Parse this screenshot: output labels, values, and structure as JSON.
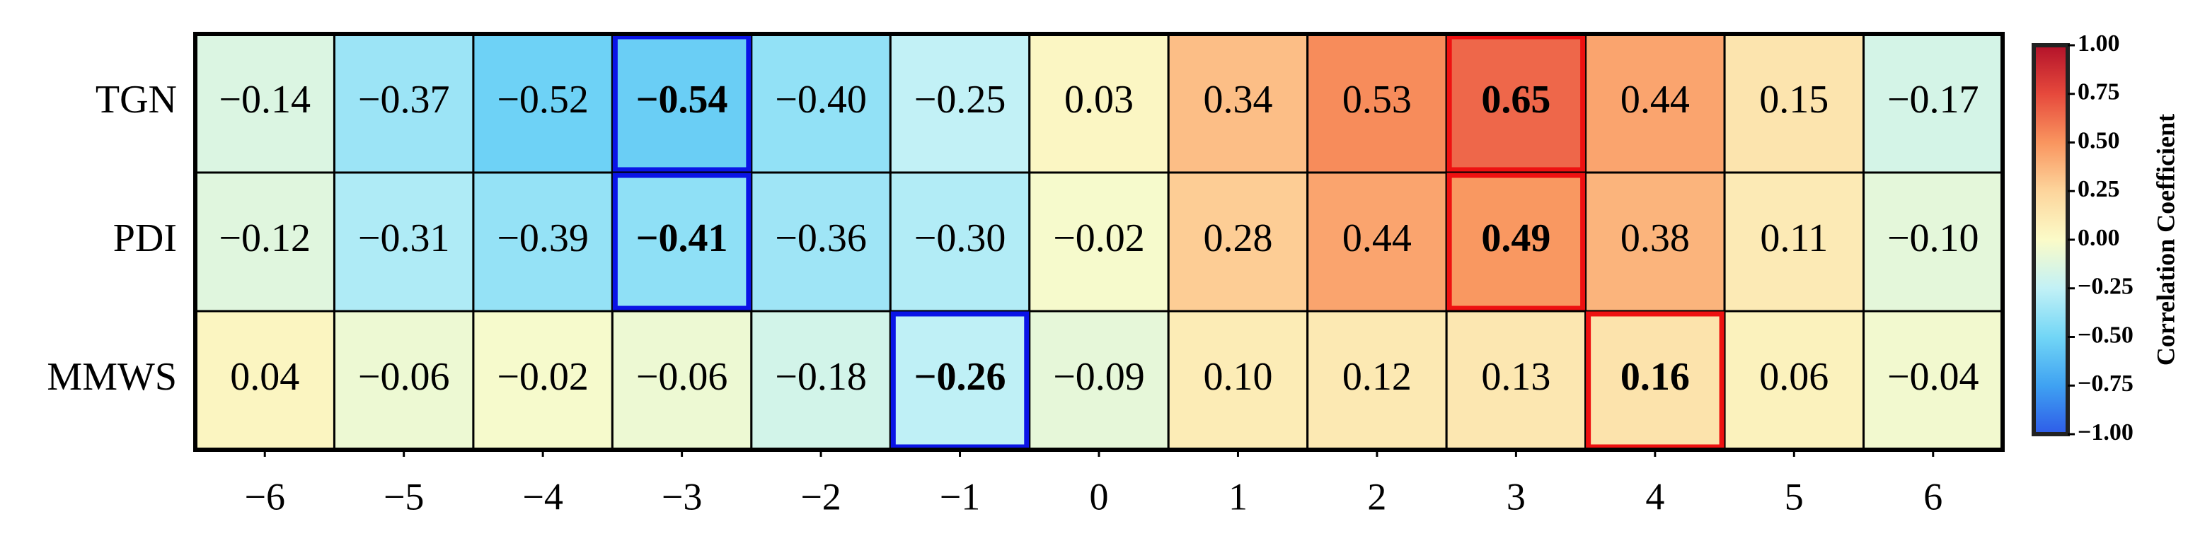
{
  "chart_data": {
    "type": "heatmap",
    "rows": [
      "TGN",
      "PDI",
      "MMWS"
    ],
    "xlim": [
      -6.5,
      6.5
    ],
    "xticks": [
      {
        "value": -6,
        "label": "−6"
      },
      {
        "value": -5,
        "label": "−5"
      },
      {
        "value": -4,
        "label": "−4"
      },
      {
        "value": -3,
        "label": "−3"
      },
      {
        "value": -2,
        "label": "−2"
      },
      {
        "value": -1,
        "label": "−1"
      },
      0,
      1,
      2,
      3,
      4,
      5,
      6
    ],
    "values": [
      [
        -0.14,
        -0.37,
        -0.52,
        -0.54,
        -0.4,
        -0.25,
        0.03,
        0.34,
        0.53,
        0.65,
        0.44,
        0.15,
        -0.17
      ],
      [
        -0.12,
        -0.31,
        -0.39,
        -0.41,
        -0.36,
        -0.3,
        -0.02,
        0.28,
        0.44,
        0.49,
        0.38,
        0.11,
        -0.1
      ],
      [
        0.04,
        -0.06,
        -0.02,
        -0.06,
        -0.18,
        -0.26,
        -0.09,
        0.1,
        0.12,
        0.13,
        0.16,
        0.06,
        -0.04
      ]
    ],
    "value_labels": [
      [
        "−0.14",
        "−0.37",
        "−0.52",
        "−0.54",
        "−0.40",
        "−0.25",
        "0.03",
        "0.34",
        "0.53",
        "0.65",
        "0.44",
        "0.15",
        "−0.17"
      ],
      [
        "−0.12",
        "−0.31",
        "−0.39",
        "−0.41",
        "−0.36",
        "−0.30",
        "−0.02",
        "0.28",
        "0.44",
        "0.49",
        "0.38",
        "0.11",
        "−0.10"
      ],
      [
        "0.04",
        "−0.06",
        "−0.02",
        "−0.06",
        "−0.18",
        "−0.26",
        "−0.09",
        "0.10",
        "0.12",
        "0.13",
        "0.16",
        "0.06",
        "−0.04"
      ]
    ],
    "colormap": [
      "#2e5be8",
      "#3fa2f2",
      "#72d6f6",
      "#c2f1f6",
      "#fbfbc8",
      "#fdd59c",
      "#f9955f",
      "#e6493c",
      "#b3122a"
    ],
    "clim": [
      -1,
      1
    ],
    "colorbar_ticks": [
      {
        "value": 1,
        "label": "1.00"
      },
      {
        "value": 0.75,
        "label": "0.75"
      },
      {
        "value": 0.5,
        "label": "0.50"
      },
      {
        "value": 0.25,
        "label": "0.25"
      },
      {
        "value": 0,
        "label": "0.00"
      },
      {
        "value": -0.25,
        "label": "−0.25"
      },
      {
        "value": -0.5,
        "label": "−0.50"
      },
      {
        "value": -0.75,
        "label": "−0.75"
      },
      {
        "value": -1,
        "label": "−1.00"
      }
    ],
    "colorbar_label": "Correlation Coefficient",
    "min_box_color": "#0a14e6",
    "max_box_color": "#ee1111"
  }
}
